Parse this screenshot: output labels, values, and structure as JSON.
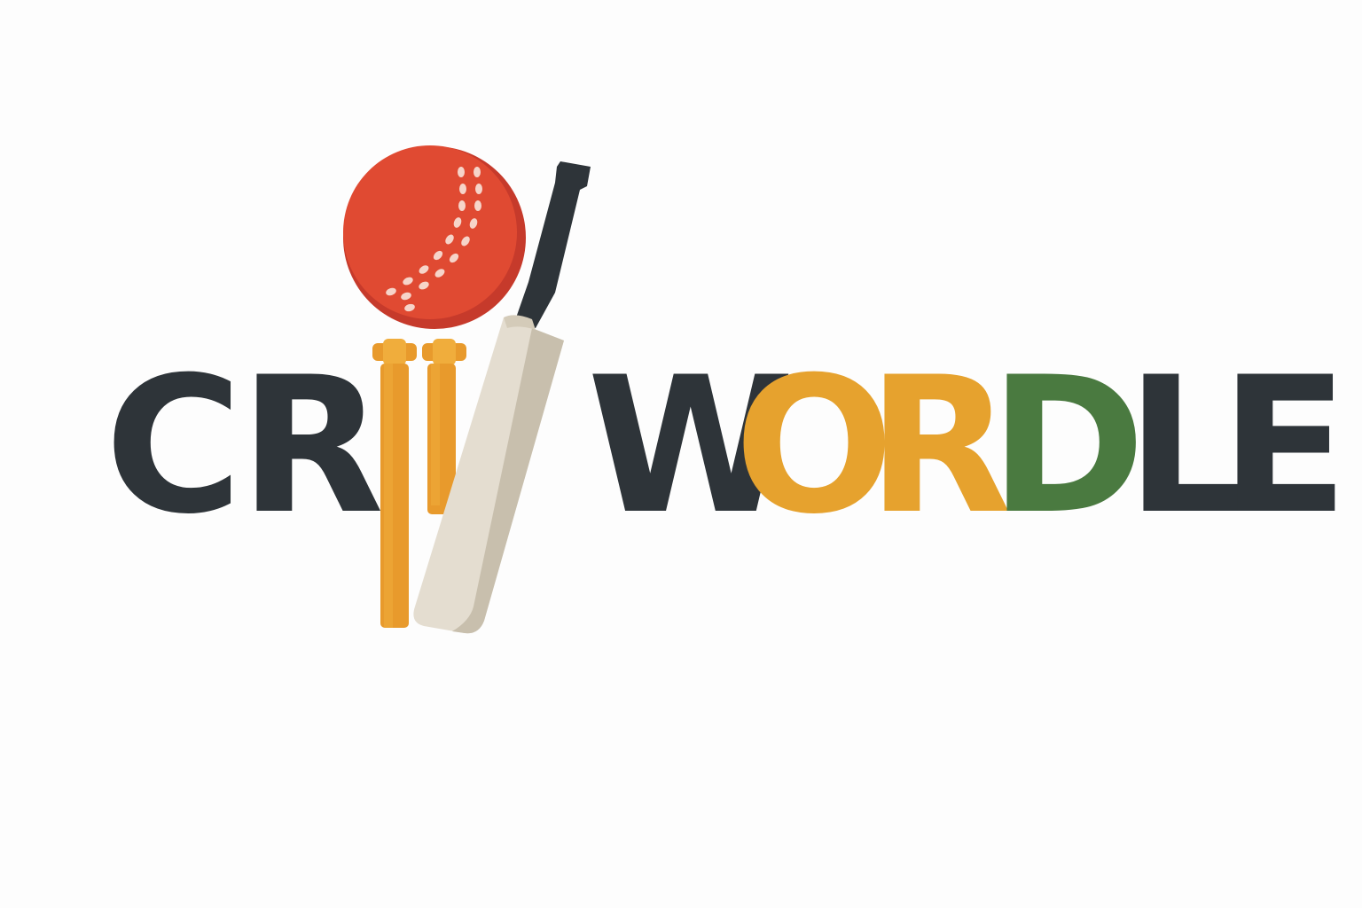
{
  "logo": {
    "text": "CRICWORDLE",
    "letters": [
      {
        "char": "C",
        "color": "#2e3439"
      },
      {
        "char": "R",
        "color": "#2e3439"
      },
      {
        "char": "W",
        "color": "#2e3439"
      },
      {
        "char": "O",
        "color": "#e6a22e"
      },
      {
        "char": "R",
        "color": "#e6a22e"
      },
      {
        "char": "D",
        "color": "#4a7a40"
      },
      {
        "char": "L",
        "color": "#2e3439"
      },
      {
        "char": "E",
        "color": "#2e3439"
      }
    ],
    "icons": [
      "cricket-ball-icon",
      "stumps-icon",
      "cricket-bat-icon"
    ]
  },
  "colors": {
    "background": "#fdfdfd",
    "dark": "#2e3439",
    "ball": "#e04a32",
    "ball_shade": "#c63a2b",
    "stumps": "#e89a2c",
    "stumps_light": "#f0ad3c",
    "bat_face": "#e4ddd0",
    "bat_edge": "#c8bfad",
    "handle": "#2e3439",
    "gold": "#e6a22e",
    "green": "#4a7a40"
  }
}
